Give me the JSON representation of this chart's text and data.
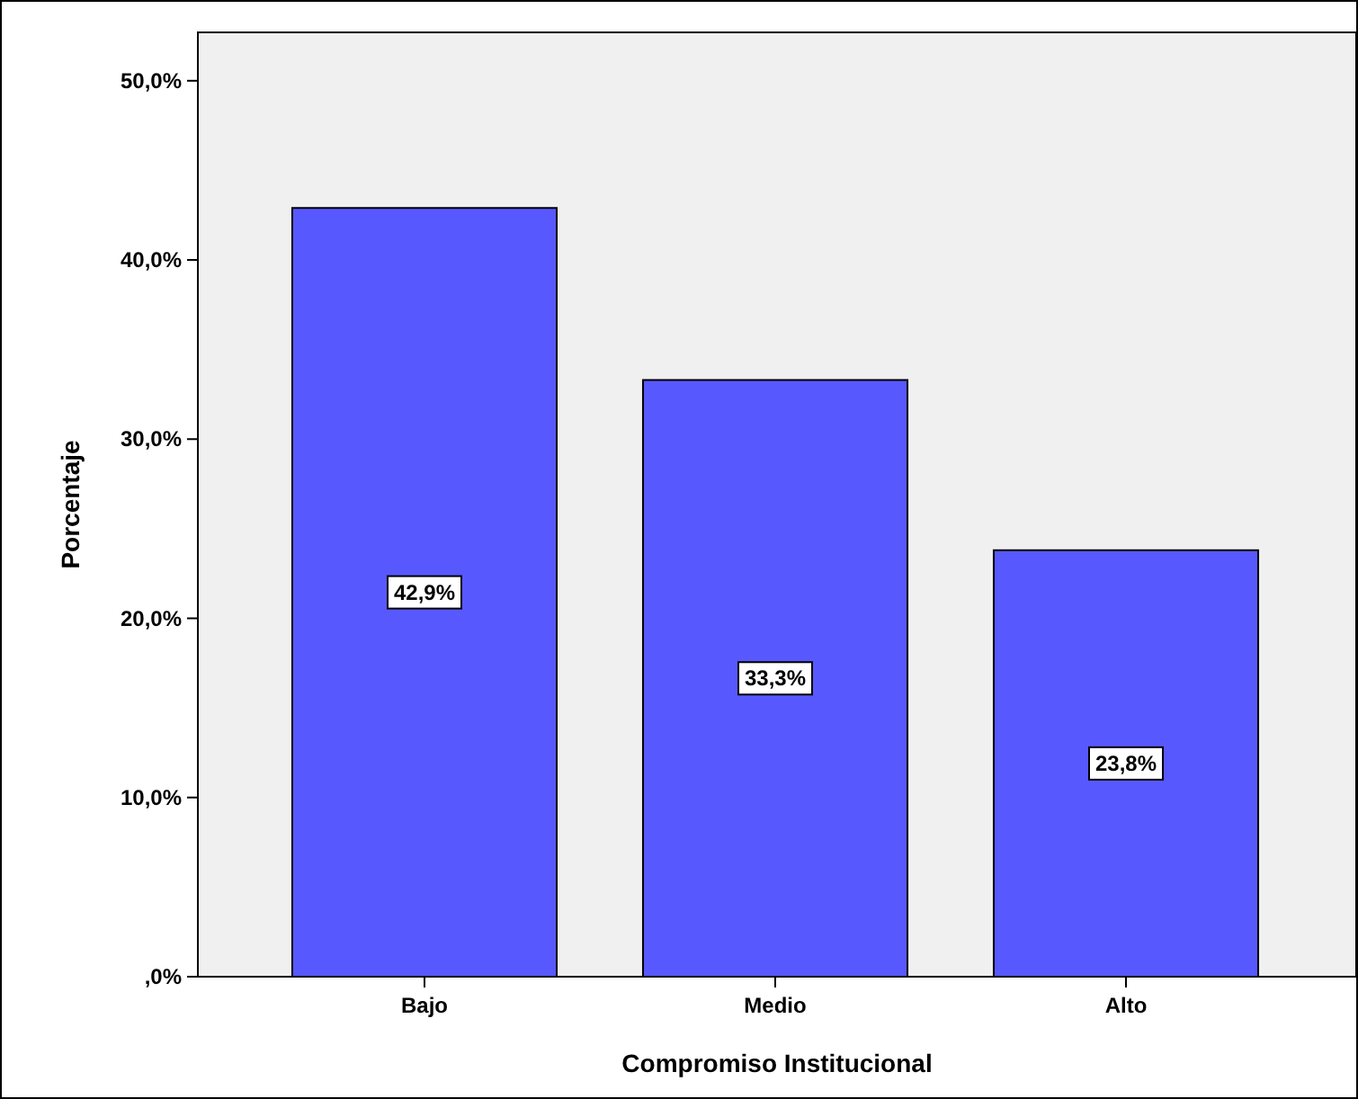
{
  "chart_data": {
    "type": "bar",
    "xlabel": "Compromiso Institucional",
    "ylabel": "Porcentaje",
    "categories": [
      "Bajo",
      "Medio",
      "Alto"
    ],
    "values": [
      42.9,
      33.3,
      23.8
    ],
    "value_labels": [
      "42,9%",
      "33,3%",
      "23,8%"
    ],
    "color": "#5858ff",
    "ylim": [
      0,
      52.7
    ],
    "yticks": [
      {
        "value": 0,
        "label": ",0%"
      },
      {
        "value": 10,
        "label": "10,0%"
      },
      {
        "value": 20,
        "label": "20,0%"
      },
      {
        "value": 30,
        "label": "30,0%"
      },
      {
        "value": 40,
        "label": "40,0%"
      },
      {
        "value": 50,
        "label": "50,0%"
      }
    ],
    "grid": false
  }
}
